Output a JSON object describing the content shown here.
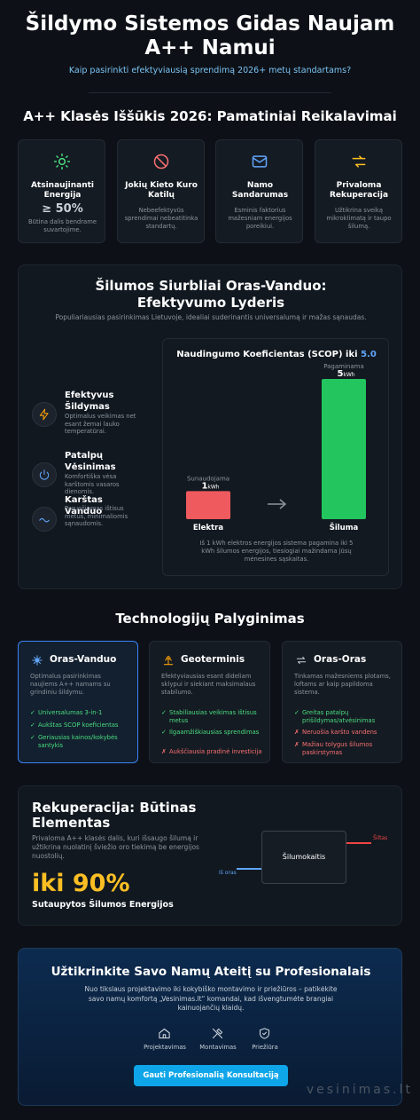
{
  "header": {
    "title": "Šildymo Sistemos Gidas Naujam A++ Namui",
    "subtitle": "Kaip pasirinkti efektyviausią sprendimą 2026+ metų standartams?"
  },
  "requirements": {
    "title": "A++ Klasės Iššūkis 2026: Pamatiniai Reikalavimai",
    "cards": [
      {
        "title": "Atsinaujinanti Energija",
        "highlight": "≥ 50%",
        "text": "Būtina dalis bendrame suvartojime."
      },
      {
        "title": "Jokių Kieto Kuro Katilų",
        "text": "Nebeefektyvūs sprendimai nebeatitinka standartų."
      },
      {
        "title": "Namo Sandarumas",
        "text": "Esminis faktorius mažesniam energijos poreikiui."
      },
      {
        "title": "Privaloma Rekuperacija",
        "text": "Užtikrina sveiką mikroklimatą ir taupo šilumą."
      }
    ]
  },
  "heat_pump": {
    "title": "Šilumos Siurbliai Oras-Vanduo: Efektyvumo Lyderis",
    "subtitle": "Populiariausias pasirinkimas Lietuvoje, idealiai suderinantis universalumą ir mažas sąnaudas.",
    "features": [
      {
        "title": "Efektyvus Šildymas",
        "text": "Optimalus veikimas net esant žemai lauko temperatūrai."
      },
      {
        "title": "Patalpų Vėsinimas",
        "text": "Komfortiška vėsa karštomis vasaros dienomis."
      },
      {
        "title": "Karštas Vanduo",
        "text": "Paruošiamas ištisus metus, minimaliomis sąnaudomis."
      }
    ],
    "scop_chart": {
      "type": "bar",
      "title": "Naudingumo Koeficientas (SCOP) iki",
      "title_value": "5.0",
      "categories": [
        "Elektra",
        "Šiluma"
      ],
      "values": [
        1,
        5
      ],
      "unit": "kWh",
      "bar_labels": [
        "Sunaudojama",
        "Pagaminama"
      ],
      "colors": [
        "#ef5a5e",
        "#22c55e"
      ],
      "note": "Iš 1 kWh elektros energijos sistema pagamina iki 5 kWh šilumos energijos, tiesiogiai mažindama jūsų mėnesines sąskaitas."
    }
  },
  "comparison": {
    "title": "Technologijų Palyginimas",
    "cards": [
      {
        "title": "Oras-Vanduo",
        "text": "Optimalus pasirinkimas naujiems A++ namams su grindiniu šildymu.",
        "items": [
          {
            "mark": "✓",
            "text": "Universalumas 3-in-1"
          },
          {
            "mark": "✓",
            "text": "Aukštas SCOP koeficientas"
          },
          {
            "mark": "✓",
            "text": "Geriausias kainos/kokybės santykis"
          }
        ]
      },
      {
        "title": "Geoterminis",
        "text": "Efektyviausias esant dideliam sklypui ir siekiant maksimalaus stabilumo.",
        "items": [
          {
            "mark": "✓",
            "text": "Stabiliausias veikimas ištisus metus"
          },
          {
            "mark": "✓",
            "text": "Ilgaamžiškiausias sprendimas"
          },
          {
            "mark": "✗",
            "text": "Aukščiausia pradinė investicija"
          }
        ]
      },
      {
        "title": "Oras-Oras",
        "text": "Tinkamas mažesniems plotams, loftams ar kaip papildoma sistema.",
        "items": [
          {
            "mark": "✓",
            "text": "Greitas patalpų prišildymas/atvėsinimas"
          },
          {
            "mark": "✗",
            "text": "Neruošia karšto vandens"
          },
          {
            "mark": "✗",
            "text": "Mažiau tolygus šilumos paskirstymas"
          }
        ]
      }
    ]
  },
  "recuperation": {
    "title": "Rekuperacija: Būtinas Elementas",
    "text": "Privaloma A++ klasės dalis, kuri išsaugo šilumą ir užtikrina nuolatinį šviežio oro tiekimą be energijos nuostolių.",
    "highlight": "iki 90%",
    "highlight_caption": "Sutaupytos Šilumos Energijos",
    "diagram": {
      "center": "Šilumokaitis",
      "warm": "Šiltas",
      "fresh": "Iš oras"
    }
  },
  "cta": {
    "title": "Užtikrinkite Savo Namų Ateitį su Profesionalais",
    "text": "Nuo tikslaus projektavimo iki kokybiško montavimo ir priežiūros – patikėkite savo namų komfortą „Vesinimas.lt“ komandai, kad išvengtumėte brangiai kainuojančių klaidų.",
    "services": [
      "Projektavimas",
      "Montavimas",
      "Priežiūra"
    ],
    "button": "Gauti Profesionalią Konsultaciją"
  },
  "watermark": "vesinimas.lt"
}
